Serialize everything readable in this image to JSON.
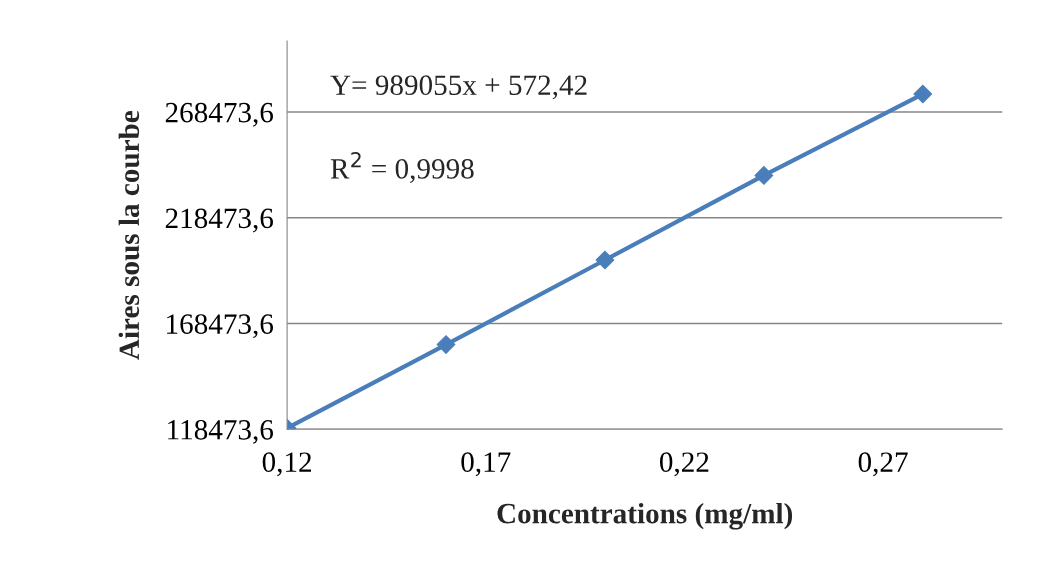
{
  "chart_data": {
    "type": "line",
    "xlabel": "Concentrations (mg/ml)",
    "ylabel": "Aires sous la courbe",
    "x": [
      0.12,
      0.16,
      0.2,
      0.24,
      0.28
    ],
    "series": [
      {
        "color": "#4a7ebb",
        "values": [
          119000,
          158500,
          198500,
          238500,
          277000
        ]
      }
    ],
    "xlim": [
      0.12,
      0.3
    ],
    "ylim": [
      118473.6,
      302000
    ],
    "xticks": [
      {
        "value": 0.12,
        "label": "0,12"
      },
      {
        "value": 0.17,
        "label": "0,17"
      },
      {
        "value": 0.22,
        "label": "0,22"
      },
      {
        "value": 0.27,
        "label": "0,27"
      }
    ],
    "yticks": [
      {
        "value": 118473.6,
        "label": "118473,6"
      },
      {
        "value": 168473.6,
        "label": "168473,6"
      },
      {
        "value": 218473.6,
        "label": "218473,6"
      },
      {
        "value": 268473.6,
        "label": "268473,6"
      }
    ],
    "grid": "y",
    "marker": "diamond",
    "line_style": "solid",
    "annotations": [
      "Y= 989055x + 572,42",
      "R$^{2}$ = 0,9998"
    ]
  }
}
